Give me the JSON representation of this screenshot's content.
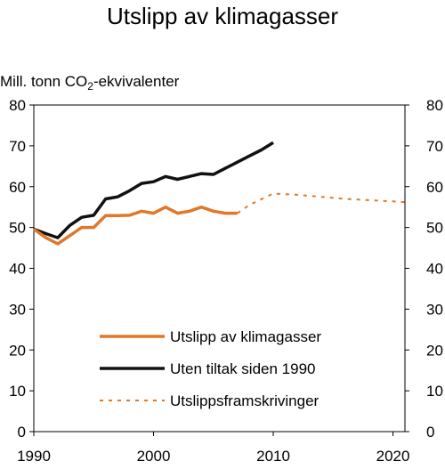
{
  "chart_data": {
    "type": "line",
    "title": "Utslipp av klimagasser",
    "ylabel_parts": {
      "pre": "Mill. tonn CO",
      "sub": "2",
      "post": "-ekvivalenter"
    },
    "xlim": [
      1990,
      2021
    ],
    "ylim": [
      0,
      80
    ],
    "x_ticks": [
      1990,
      2000,
      2010,
      2020
    ],
    "x_tick_labels": [
      "1990",
      "2000",
      "2010",
      "2020"
    ],
    "y_ticks": [
      0,
      10,
      20,
      30,
      40,
      50,
      60,
      70,
      80
    ],
    "y_tick_labels": [
      "0",
      "10",
      "20",
      "30",
      "40",
      "50",
      "60",
      "70",
      "80"
    ],
    "grid": false,
    "legend_position": "bottom-center",
    "series": [
      {
        "name": "Utslipp av klimagasser",
        "color": "#E0782A",
        "style": "solid",
        "x": [
          1990,
          1991,
          1992,
          1993,
          1994,
          1995,
          1996,
          1997,
          1998,
          1999,
          2000,
          2001,
          2002,
          2003,
          2004,
          2005,
          2006,
          2007
        ],
        "y": [
          49.6,
          47.5,
          46.0,
          48.0,
          50.0,
          50.0,
          52.9,
          52.9,
          53.0,
          54.0,
          53.5,
          55.0,
          53.5,
          54.0,
          55.0,
          54.0,
          53.5,
          53.5
        ]
      },
      {
        "name": "Uten tiltak siden 1990",
        "color": "#111111",
        "style": "solid",
        "x": [
          1990,
          1991,
          1992,
          1993,
          1994,
          1995,
          1996,
          1997,
          1998,
          1999,
          2000,
          2001,
          2002,
          2003,
          2004,
          2005,
          2006,
          2007,
          2008,
          2009,
          2010
        ],
        "y": [
          49.6,
          48.5,
          47.5,
          50.5,
          52.5,
          53.0,
          57.0,
          57.5,
          59.0,
          60.8,
          61.2,
          62.5,
          61.8,
          62.5,
          63.2,
          63.0,
          64.5,
          66.0,
          67.5,
          69.0,
          70.8
        ]
      },
      {
        "name": "Utslippsframskrivinger",
        "color": "#E0782A",
        "style": "dotted",
        "x": [
          2007,
          2008,
          2010,
          2012,
          2014,
          2016,
          2018,
          2020,
          2021
        ],
        "y": [
          53.5,
          55.5,
          58.3,
          58.0,
          57.5,
          57.0,
          56.7,
          56.4,
          56.2
        ]
      }
    ]
  }
}
